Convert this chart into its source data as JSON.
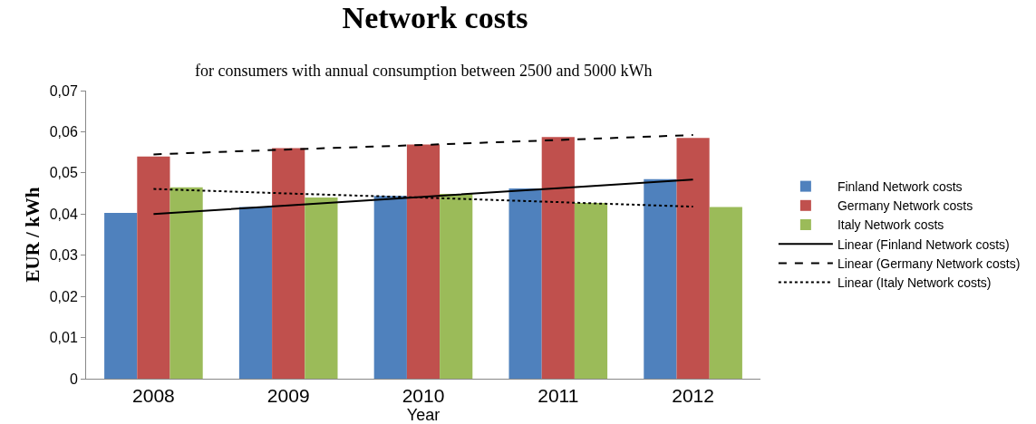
{
  "chart_data": {
    "type": "bar",
    "title": "Network costs",
    "subtitle": "for consumers with annual consumption between 2500 and 5000 kWh",
    "xlabel": "Year",
    "ylabel": "EUR / kWh",
    "categories": [
      "2008",
      "2009",
      "2010",
      "2011",
      "2012"
    ],
    "series": [
      {
        "name": "Finland Network costs",
        "color": "#4f81bd",
        "values": [
          0.0403,
          0.0417,
          0.0444,
          0.0462,
          0.0485
        ]
      },
      {
        "name": "Germany Network costs",
        "color": "#c0504d",
        "values": [
          0.054,
          0.056,
          0.0569,
          0.0587,
          0.0585
        ]
      },
      {
        "name": "Italy Network costs",
        "color": "#9bbb59",
        "values": [
          0.0465,
          0.044,
          0.0449,
          0.0427,
          0.0417
        ]
      },
      {
        "name": "Linear (Finland Network costs)",
        "type": "line",
        "color": "#000000",
        "line_style": "solid",
        "values": [
          0.04,
          0.0421,
          0.0442,
          0.0463,
          0.0484
        ]
      },
      {
        "name": "Linear (Germany Network costs)",
        "type": "line",
        "color": "#000000",
        "line_style": "dashed",
        "values": [
          0.0545,
          0.0557,
          0.0568,
          0.058,
          0.0592
        ]
      },
      {
        "name": "Linear (Italy Network costs)",
        "type": "line",
        "color": "#000000",
        "line_style": "dotted",
        "values": [
          0.0461,
          0.045,
          0.044,
          0.0429,
          0.0418
        ]
      }
    ],
    "ylim": [
      0,
      0.07
    ],
    "yticks": [
      {
        "value": 0,
        "label": "0"
      },
      {
        "value": 0.01,
        "label": "0,01"
      },
      {
        "value": 0.02,
        "label": "0,02"
      },
      {
        "value": 0.03,
        "label": "0,03"
      },
      {
        "value": 0.04,
        "label": "0,04"
      },
      {
        "value": 0.05,
        "label": "0,05"
      },
      {
        "value": 0.06,
        "label": "0,06"
      },
      {
        "value": 0.07,
        "label": "0,07"
      }
    ],
    "grid": false,
    "legend": "right",
    "marker": "none"
  }
}
